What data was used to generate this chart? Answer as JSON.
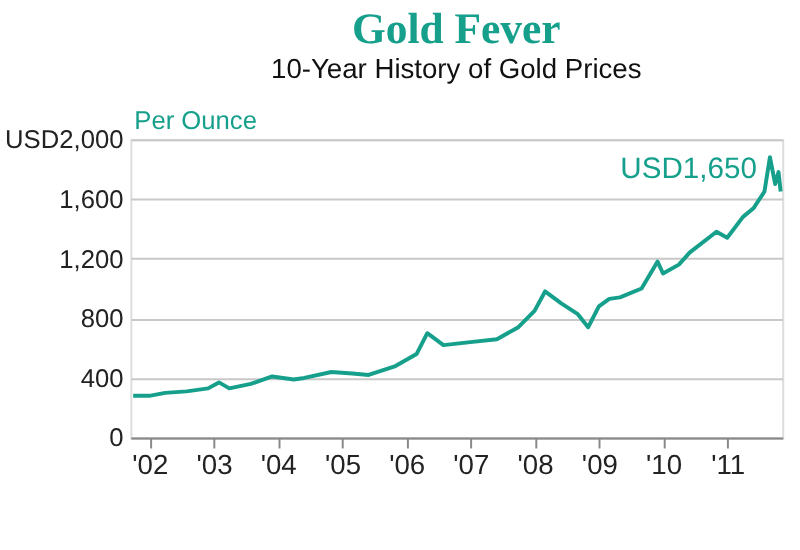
{
  "chart_data": {
    "type": "line",
    "title": "Gold Fever",
    "subtitle": "10-Year History of Gold Prices",
    "ylabel": "Per Ounce",
    "x": [
      "2001-10",
      "2002-01",
      "2002-04",
      "2002-08",
      "2002-12",
      "2003-02",
      "2003-04",
      "2003-08",
      "2003-12",
      "2004-04",
      "2004-06",
      "2004-11",
      "2005-03",
      "2005-06",
      "2005-11",
      "2006-03",
      "2006-05",
      "2006-08",
      "2007-01",
      "2007-06",
      "2007-10",
      "2008-01",
      "2008-03",
      "2008-06",
      "2008-09",
      "2008-11",
      "2009-01",
      "2009-03",
      "2009-05",
      "2009-09",
      "2009-12",
      "2010-01",
      "2010-04",
      "2010-06",
      "2010-11",
      "2011-01",
      "2011-04",
      "2011-06",
      "2011-08",
      "2011-09",
      "2011-10",
      "2011-10-20",
      "2011-11"
    ],
    "series": [
      {
        "color": "#16a08c",
        "values": [
          280,
          280,
          300,
          310,
          330,
          370,
          330,
          360,
          410,
          390,
          400,
          440,
          430,
          420,
          480,
          560,
          700,
          620,
          640,
          660,
          740,
          850,
          980,
          900,
          830,
          740,
          880,
          930,
          940,
          1000,
          1180,
          1100,
          1160,
          1240,
          1380,
          1340,
          1480,
          1540,
          1650,
          1880,
          1700,
          1780,
          1650
        ]
      }
    ],
    "xlim": [
      "2001-09-15",
      "2011-11-10"
    ],
    "ylim": [
      0,
      2000
    ],
    "xticks": [
      {
        "value": "2002-01-01",
        "label": "'02"
      },
      {
        "value": "2003-01-01",
        "label": "'03"
      },
      {
        "value": "2004-01-01",
        "label": "'04"
      },
      {
        "value": "2005-01-01",
        "label": "'05"
      },
      {
        "value": "2006-01-01",
        "label": "'06"
      },
      {
        "value": "2007-01-01",
        "label": "'07"
      },
      {
        "value": "2008-01-01",
        "label": "'08"
      },
      {
        "value": "2009-01-01",
        "label": "'09"
      },
      {
        "value": "2010-01-01",
        "label": "'10"
      },
      {
        "value": "2011-01-01",
        "label": "'11"
      }
    ],
    "yticks": [
      0,
      400,
      800,
      {
        "value": 1200,
        "label": "1,200"
      },
      {
        "value": 1600,
        "label": "1,600"
      },
      {
        "value": 2000,
        "label": "USD2,000"
      }
    ],
    "annotations": [
      {
        "text": "USD1,650",
        "x": "2011-11",
        "y": 1650
      }
    ],
    "grid": "y",
    "marker": "none",
    "line_style": "solid"
  }
}
